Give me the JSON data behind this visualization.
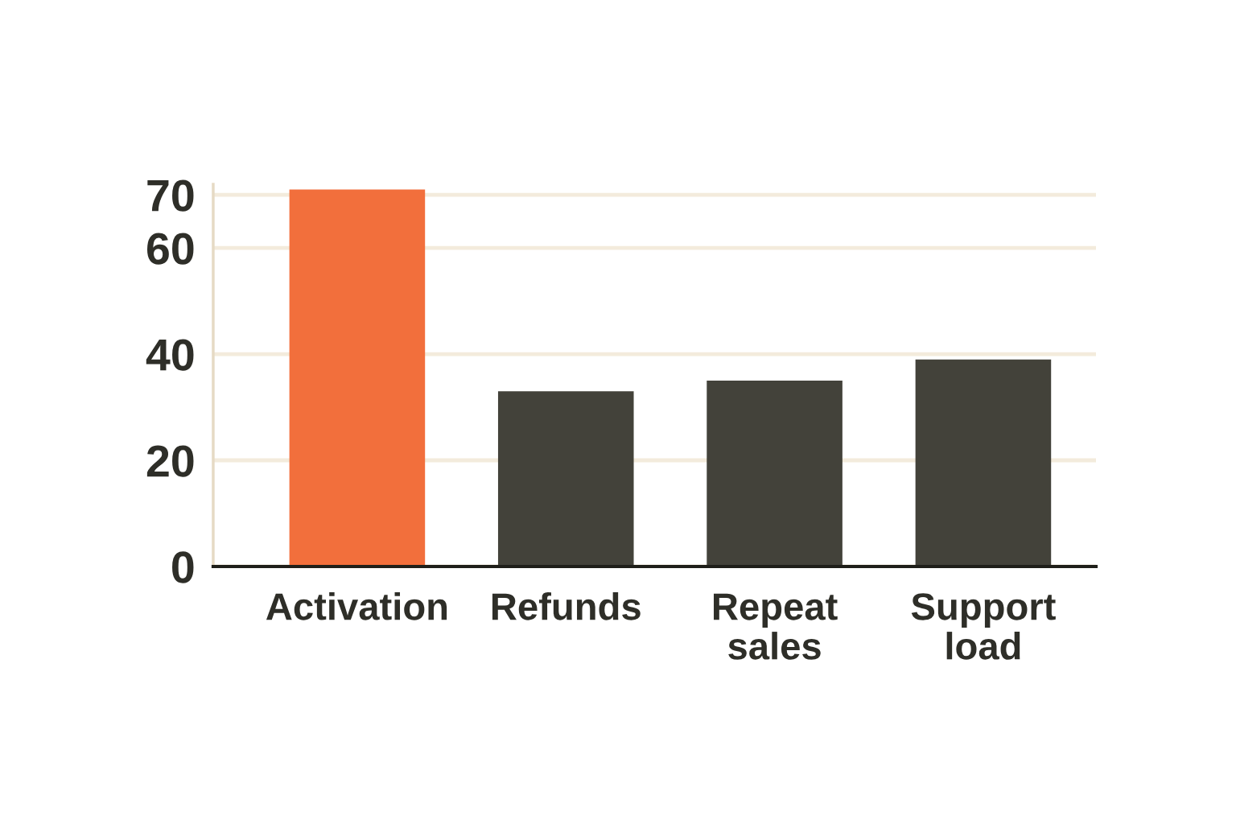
{
  "chart_data": {
    "type": "bar",
    "categories": [
      "Activation",
      "Refunds",
      "Repeat\nsales",
      "Support\nload"
    ],
    "values": [
      71,
      33,
      35,
      39
    ],
    "colors": [
      "#f26f3c",
      "#43423a",
      "#43423a",
      "#43423a"
    ],
    "ylim": [
      0,
      72
    ],
    "yticks": [
      0,
      20,
      40,
      60,
      70
    ],
    "grid": "y"
  }
}
